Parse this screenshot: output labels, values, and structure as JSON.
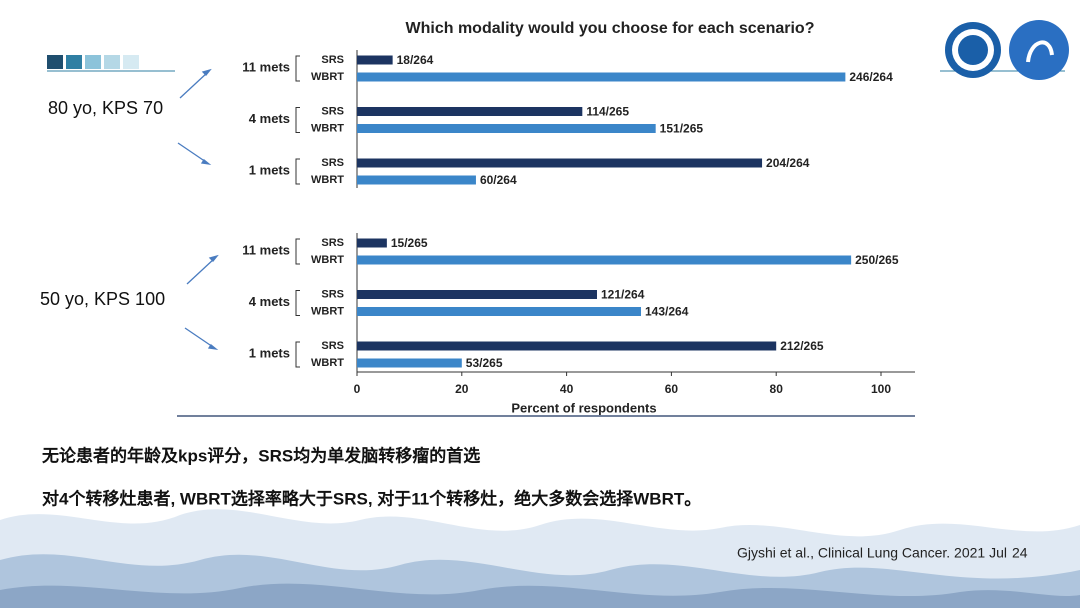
{
  "chart_data": [
    {
      "type": "bar",
      "orientation": "horizontal",
      "title": "Which modality would you choose for each scenario?",
      "categories": [
        "11 mets",
        "4 mets",
        "1 mets"
      ],
      "series": [
        {
          "name": "SRS",
          "color": "#1c3461",
          "values": [
            6.8,
            43.0,
            77.3
          ],
          "value_labels": [
            "18/264",
            "114/265",
            "204/264"
          ]
        },
        {
          "name": "WBRT",
          "color": "#3b86c9",
          "values": [
            93.2,
            57.0,
            22.7
          ],
          "value_labels": [
            "246/264",
            "151/265",
            "60/264"
          ]
        }
      ],
      "xlim": [
        0,
        100
      ],
      "grid": false
    },
    {
      "type": "bar",
      "orientation": "horizontal",
      "xlabel": "Percent of respondents",
      "categories": [
        "11 mets",
        "4 mets",
        "1 mets"
      ],
      "series": [
        {
          "name": "SRS",
          "color": "#1c3461",
          "values": [
            5.7,
            45.8,
            80.0
          ],
          "value_labels": [
            "15/265",
            "121/264",
            "212/265"
          ]
        },
        {
          "name": "WBRT",
          "color": "#3b86c9",
          "values": [
            94.3,
            54.2,
            20.0
          ],
          "value_labels": [
            "250/265",
            "143/264",
            "53/265"
          ]
        }
      ],
      "xlim": [
        0,
        100
      ],
      "xticks": [
        0,
        20,
        40,
        60,
        80,
        100
      ],
      "grid": false
    }
  ],
  "slide": {
    "group_labels": [
      "80 yo, KPS 70",
      "50 yo, KPS 100"
    ],
    "notes": [
      "无论患者的年龄及kps评分，SRS均为单发脑转移瘤的首选",
      "对4个转移灶患者, WBRT选择率略大于SRS, 对于11个转移灶，绝大多数会选择WBRT。"
    ],
    "citation": "Gjyshi et al., Clinical Lung Cancer. 2021 Jul",
    "page": "24"
  }
}
